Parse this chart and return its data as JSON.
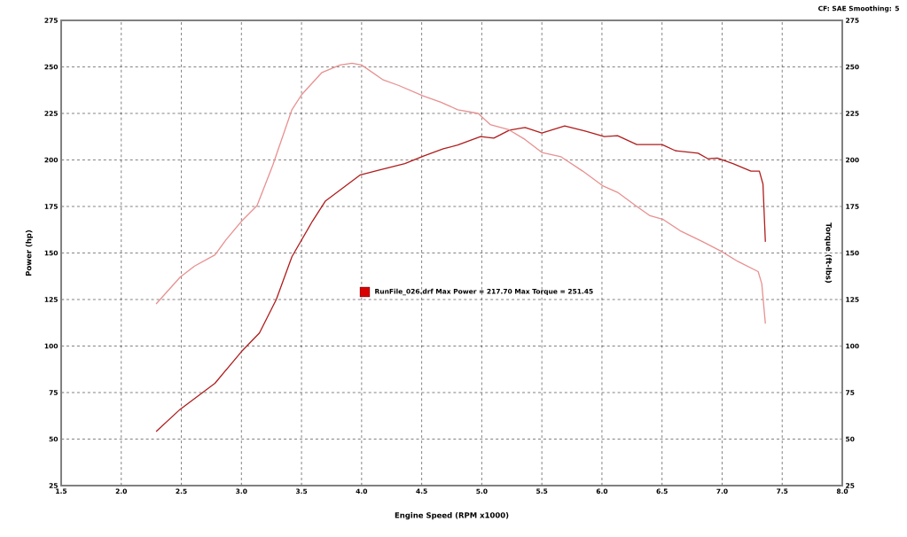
{
  "chart_data": {
    "type": "line",
    "xlabel": "Engine Speed (RPM x1000)",
    "ylabel": "Power (hp)",
    "y2label": "Torque (ft-lbs)",
    "annotations": [
      "CF: SAE  Smoothing: 5",
      "RunFile_026.drf Max Power = 217.70    Max Torque = 251.45"
    ],
    "xlim": [
      1.5,
      8.0
    ],
    "xticks": [
      1.5,
      {
        "value": 2,
        "label": "2.0"
      },
      2.5,
      {
        "value": 3,
        "label": "3.0"
      },
      3.5,
      {
        "value": 4,
        "label": "4.0"
      },
      4.5,
      {
        "value": 5,
        "label": "5.0"
      },
      5.5,
      {
        "value": 6,
        "label": "6.0"
      },
      6.5,
      {
        "value": 7,
        "label": "7.0"
      },
      7.5,
      {
        "value": 8,
        "label": "8.0"
      }
    ],
    "ylim": [
      25,
      275
    ],
    "yticks": [
      25,
      50,
      75,
      100,
      125,
      150,
      175,
      200,
      225,
      250,
      275
    ],
    "y2lim": [
      25,
      275
    ],
    "y2ticks": [
      25,
      50,
      75,
      100,
      125,
      150,
      175,
      200,
      225,
      250,
      275
    ],
    "grid": true,
    "line_style": "solid",
    "marker": "none",
    "series": [
      {
        "color": "#b01c1c",
        "x": [
          2.29,
          2.49,
          2.78,
          3.0,
          3.15,
          3.29,
          3.42,
          3.59,
          3.7,
          3.99,
          4.14,
          4.36,
          4.51,
          4.68,
          4.8,
          4.99,
          5.1,
          5.23,
          5.36,
          5.5,
          5.69,
          5.86,
          6.02,
          6.13,
          6.29,
          6.5,
          6.61,
          6.8,
          6.88,
          6.96,
          7.09,
          7.24,
          7.31,
          7.34,
          7.36
        ],
        "values": [
          54,
          66,
          80,
          97,
          107,
          125,
          148,
          167,
          178,
          192,
          194.5,
          198,
          202,
          206,
          208,
          212.6,
          211.7,
          216,
          217.4,
          214.5,
          218.3,
          215.5,
          212.6,
          213,
          208.3,
          208.3,
          205,
          203.6,
          200.7,
          201,
          198,
          194,
          194,
          187,
          156
        ]
      },
      {
        "color": "#e89090",
        "axis": "y2",
        "x": [
          2.29,
          2.49,
          2.61,
          2.78,
          2.87,
          3.0,
          3.13,
          3.26,
          3.42,
          3.5,
          3.67,
          3.82,
          3.92,
          4.0,
          4.18,
          4.31,
          4.51,
          4.66,
          4.8,
          4.97,
          5.07,
          5.22,
          5.36,
          5.5,
          5.66,
          5.84,
          6.01,
          6.13,
          6.28,
          6.4,
          6.51,
          6.65,
          6.84,
          6.99,
          7.13,
          7.3,
          7.33,
          7.36
        ],
        "values": [
          122.6,
          137,
          143,
          149,
          157,
          167,
          175.5,
          197,
          227,
          235,
          247,
          251,
          252,
          251,
          243,
          240,
          234.5,
          231,
          227,
          225,
          219,
          216.4,
          211,
          204,
          201.7,
          194,
          186,
          182.6,
          175.5,
          170,
          168,
          162,
          156,
          151,
          145.5,
          140,
          133.5,
          112
        ]
      }
    ]
  }
}
